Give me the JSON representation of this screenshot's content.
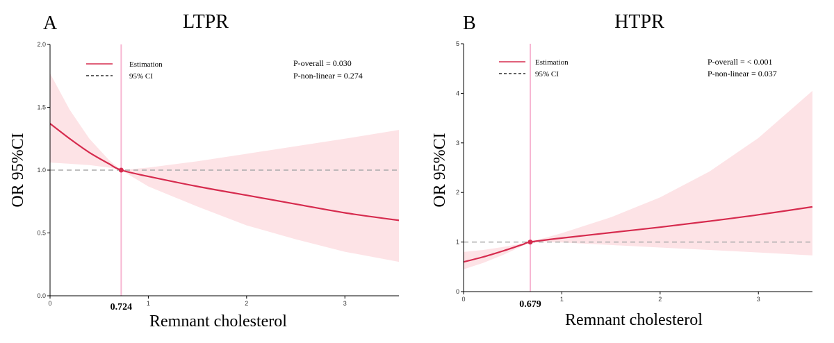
{
  "colors": {
    "estimate": "#d62b4e",
    "ci_fill": "#fde3e6",
    "cutoff_line": "#f7b6d2",
    "reference_line": "#aaaaaa",
    "axis": "#000000"
  },
  "legend": {
    "estimation_label": "Estimation",
    "ci_label": "95% CI"
  },
  "chart_data": [
    {
      "type": "line",
      "panel": "A",
      "title": "LTPR",
      "xlabel": "Remnant cholesterol",
      "ylabel": "OR 95%CI",
      "xlim": [
        0,
        3.55
      ],
      "ylim": [
        0,
        2.0
      ],
      "xticks": [
        0,
        1,
        2,
        3
      ],
      "xtick_labels": [
        "0",
        "1",
        "2",
        "3"
      ],
      "yticks": [
        0,
        0.5,
        1.0,
        1.5,
        2.0
      ],
      "ytick_labels": [
        "0.0",
        "0.5",
        "1.0",
        "1.5",
        "2.0"
      ],
      "reference_y": 1.0,
      "cutoff_x": 0.724,
      "cutoff_label": "0.724",
      "p_overall": "P-overall = 0.030",
      "p_nonlinear": "P-non-linear = 0.274",
      "series": [
        {
          "name": "Estimation",
          "x": [
            0,
            0.2,
            0.4,
            0.6,
            0.724,
            1.0,
            1.5,
            2.0,
            2.5,
            3.0,
            3.55
          ],
          "y": [
            1.37,
            1.25,
            1.14,
            1.05,
            1.0,
            0.95,
            0.87,
            0.8,
            0.73,
            0.66,
            0.6
          ]
        },
        {
          "name": "95% CI upper",
          "x": [
            0,
            0.2,
            0.4,
            0.6,
            0.724,
            1.0,
            1.5,
            2.0,
            2.5,
            3.0,
            3.55
          ],
          "y": [
            1.77,
            1.48,
            1.25,
            1.08,
            1.0,
            1.02,
            1.07,
            1.13,
            1.19,
            1.25,
            1.32
          ]
        },
        {
          "name": "95% CI lower",
          "x": [
            0,
            0.2,
            0.4,
            0.6,
            0.724,
            1.0,
            1.5,
            2.0,
            2.5,
            3.0,
            3.55
          ],
          "y": [
            1.06,
            1.05,
            1.04,
            1.02,
            1.0,
            0.87,
            0.71,
            0.56,
            0.45,
            0.35,
            0.27
          ]
        }
      ]
    },
    {
      "type": "line",
      "panel": "B",
      "title": "HTPR",
      "xlabel": "Remnant cholesterol",
      "ylabel": "OR 95%CI",
      "xlim": [
        0,
        3.55
      ],
      "ylim": [
        0,
        5
      ],
      "xticks": [
        0,
        1,
        2,
        3
      ],
      "xtick_labels": [
        "0",
        "1",
        "2",
        "3"
      ],
      "yticks": [
        0,
        1,
        2,
        3,
        4,
        5
      ],
      "ytick_labels": [
        "0",
        "1",
        "2",
        "3",
        "4",
        "5"
      ],
      "reference_y": 1.0,
      "cutoff_x": 0.679,
      "cutoff_label": "0.679",
      "p_overall": "P-overall = < 0.001",
      "p_nonlinear": "P-non-linear = 0.037",
      "series": [
        {
          "name": "Estimation",
          "x": [
            0,
            0.2,
            0.4,
            0.6,
            0.679,
            1.0,
            1.5,
            2.0,
            2.5,
            3.0,
            3.55
          ],
          "y": [
            0.6,
            0.7,
            0.82,
            0.95,
            1.0,
            1.08,
            1.19,
            1.3,
            1.42,
            1.55,
            1.71
          ]
        },
        {
          "name": "95% CI upper",
          "x": [
            0,
            0.2,
            0.4,
            0.6,
            0.679,
            1.0,
            1.5,
            2.0,
            2.5,
            3.0,
            3.55
          ],
          "y": [
            0.8,
            0.84,
            0.9,
            0.97,
            1.0,
            1.18,
            1.5,
            1.9,
            2.42,
            3.1,
            4.05
          ]
        },
        {
          "name": "95% CI lower",
          "x": [
            0,
            0.2,
            0.4,
            0.6,
            0.679,
            1.0,
            1.5,
            2.0,
            2.5,
            3.0,
            3.55
          ],
          "y": [
            0.45,
            0.58,
            0.74,
            0.92,
            1.0,
            0.99,
            0.94,
            0.89,
            0.84,
            0.79,
            0.73
          ]
        }
      ]
    }
  ]
}
